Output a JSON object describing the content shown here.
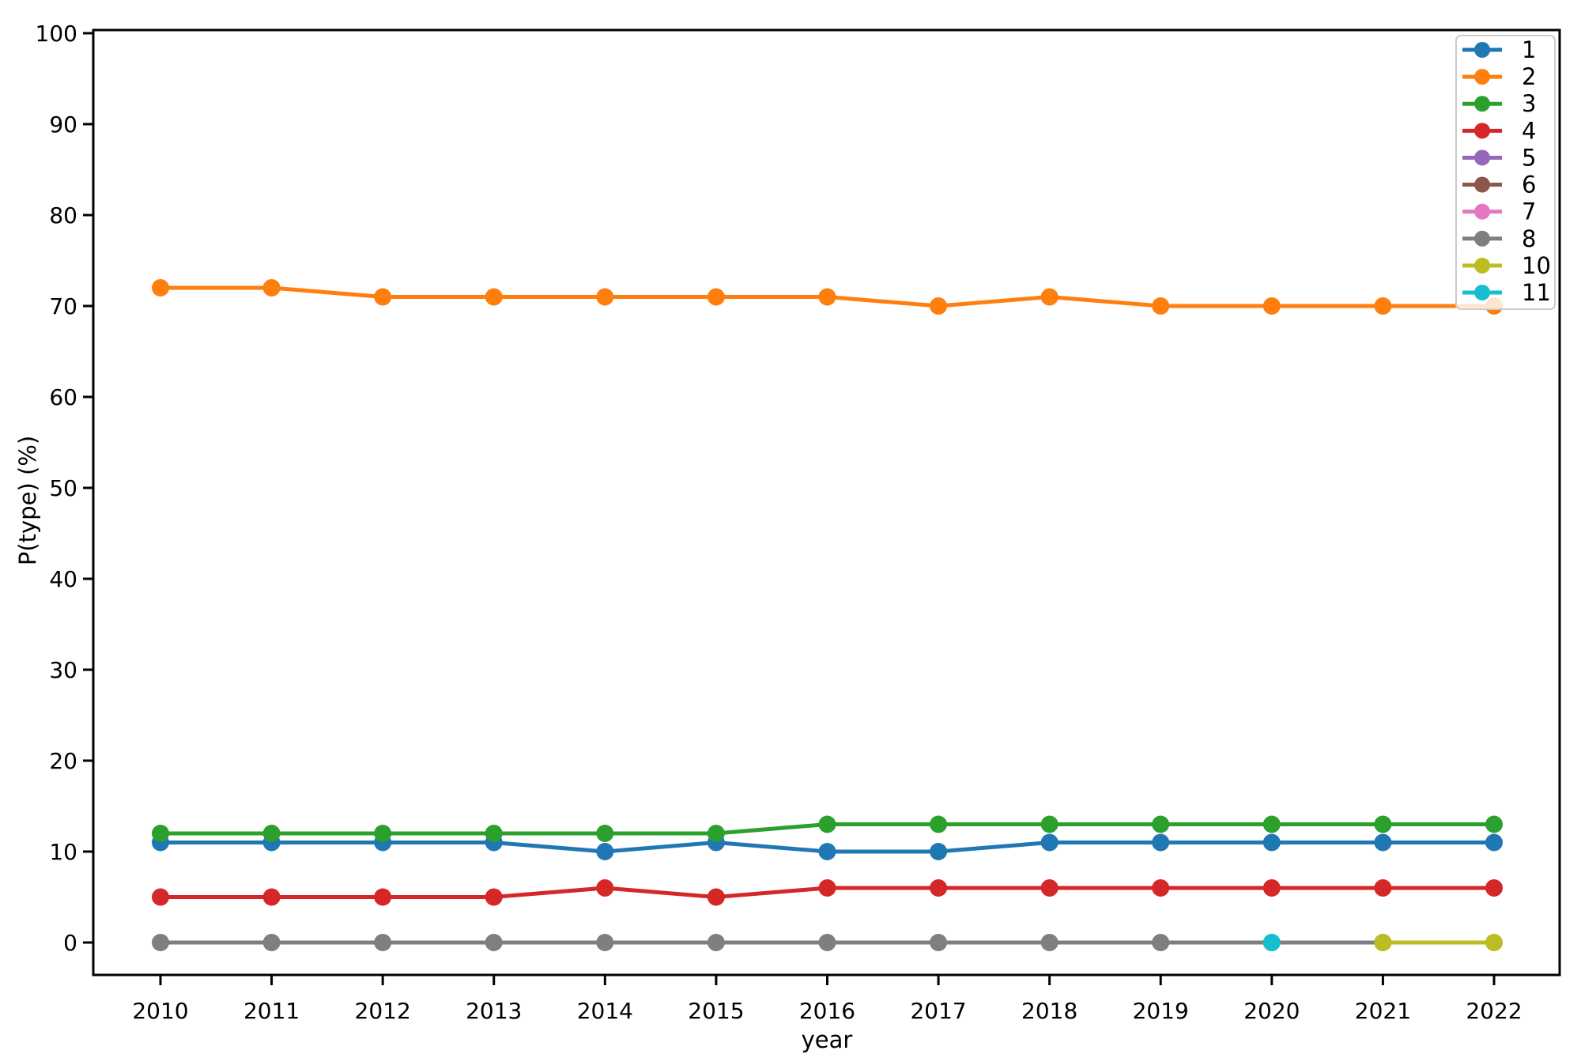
{
  "chart_data": {
    "type": "line",
    "title": "",
    "xlabel": "year",
    "ylabel": "P(type) (%)",
    "x_ticks": [
      2010,
      2011,
      2012,
      2013,
      2014,
      2015,
      2016,
      2017,
      2018,
      2019,
      2020,
      2021,
      2022
    ],
    "y_ticks": [
      0,
      10,
      20,
      30,
      40,
      50,
      60,
      70,
      80,
      90,
      100
    ],
    "xlim": [
      2009.4,
      2022.6
    ],
    "ylim": [
      -3.6,
      100.4
    ],
    "grid": false,
    "legend_position": "upper right",
    "legend": {
      "entries": [
        {
          "label": "1",
          "color": "#1f77b4"
        },
        {
          "label": "2",
          "color": "#ff7f0e"
        },
        {
          "label": "3",
          "color": "#2ca02c"
        },
        {
          "label": "4",
          "color": "#d62728"
        },
        {
          "label": "5",
          "color": "#9467bd"
        },
        {
          "label": "6",
          "color": "#8c564b"
        },
        {
          "label": "7",
          "color": "#e377c2"
        },
        {
          "label": "8",
          "color": "#7f7f7f"
        },
        {
          "label": "10",
          "color": "#bcbd22"
        },
        {
          "label": "11",
          "color": "#17becf"
        }
      ]
    },
    "series": [
      {
        "name": "1",
        "color": "#1f77b4",
        "x": [
          2010,
          2011,
          2012,
          2013,
          2014,
          2015,
          2016,
          2017,
          2018,
          2019,
          2020,
          2021,
          2022
        ],
        "values": [
          11,
          11,
          11,
          11,
          10,
          11,
          10,
          10,
          11,
          11,
          11,
          11,
          11
        ]
      },
      {
        "name": "2",
        "color": "#ff7f0e",
        "x": [
          2010,
          2011,
          2012,
          2013,
          2014,
          2015,
          2016,
          2017,
          2018,
          2019,
          2020,
          2021,
          2022
        ],
        "values": [
          72,
          72,
          71,
          71,
          71,
          71,
          71,
          70,
          71,
          70,
          70,
          70,
          70
        ]
      },
      {
        "name": "3",
        "color": "#2ca02c",
        "x": [
          2010,
          2011,
          2012,
          2013,
          2014,
          2015,
          2016,
          2017,
          2018,
          2019,
          2020,
          2021,
          2022
        ],
        "values": [
          12,
          12,
          12,
          12,
          12,
          12,
          13,
          13,
          13,
          13,
          13,
          13,
          13
        ]
      },
      {
        "name": "4",
        "color": "#d62728",
        "x": [
          2010,
          2011,
          2012,
          2013,
          2014,
          2015,
          2016,
          2017,
          2018,
          2019,
          2020,
          2021,
          2022
        ],
        "values": [
          5,
          5,
          5,
          5,
          6,
          5,
          6,
          6,
          6,
          6,
          6,
          6,
          6
        ]
      },
      {
        "name": "5",
        "color": "#9467bd",
        "x": [],
        "values": []
      },
      {
        "name": "6",
        "color": "#8c564b",
        "x": [],
        "values": []
      },
      {
        "name": "7",
        "color": "#e377c2",
        "x": [],
        "values": []
      },
      {
        "name": "8",
        "color": "#7f7f7f",
        "x": [
          2010,
          2011,
          2012,
          2013,
          2014,
          2015,
          2016,
          2017,
          2018,
          2019,
          2020,
          2021
        ],
        "values": [
          0,
          0,
          0,
          0,
          0,
          0,
          0,
          0,
          0,
          0,
          0,
          0
        ]
      },
      {
        "name": "10",
        "color": "#bcbd22",
        "x": [
          2021,
          2022
        ],
        "values": [
          0,
          0
        ]
      },
      {
        "name": "11",
        "color": "#17becf",
        "x": [
          2020
        ],
        "values": [
          0
        ]
      }
    ]
  }
}
